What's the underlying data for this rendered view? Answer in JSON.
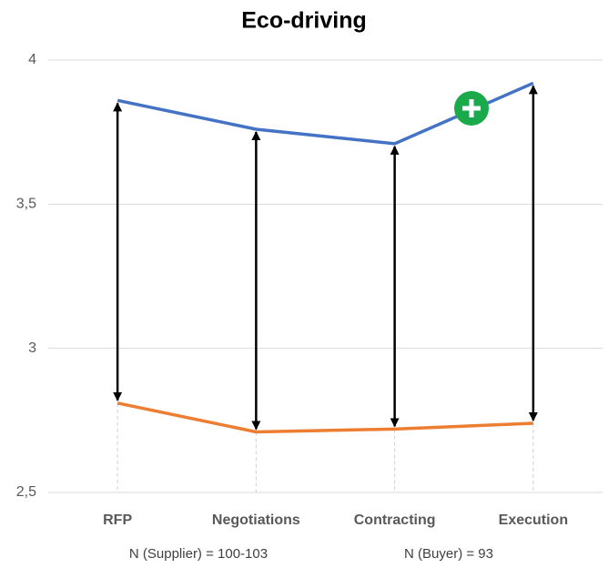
{
  "chart_data": {
    "type": "line",
    "title": "Eco-driving",
    "categories": [
      "RFP",
      "Negotiations",
      "Contracting",
      "Execution"
    ],
    "series": [
      {
        "color": "#4472c4",
        "values": [
          3.86,
          3.76,
          3.71,
          3.92
        ]
      },
      {
        "color": "#ed7d31",
        "values": [
          2.81,
          2.71,
          2.72,
          2.74
        ]
      }
    ],
    "ylim": [
      2.5,
      4
    ],
    "yticks": [
      {
        "value": 2.5,
        "label": "2,5"
      },
      3,
      {
        "value": 3.5,
        "label": "3,5"
      },
      4
    ],
    "grid": true,
    "annotations": [
      "N (Supplier) = 100-103",
      "N (Buyer) = 93"
    ]
  }
}
